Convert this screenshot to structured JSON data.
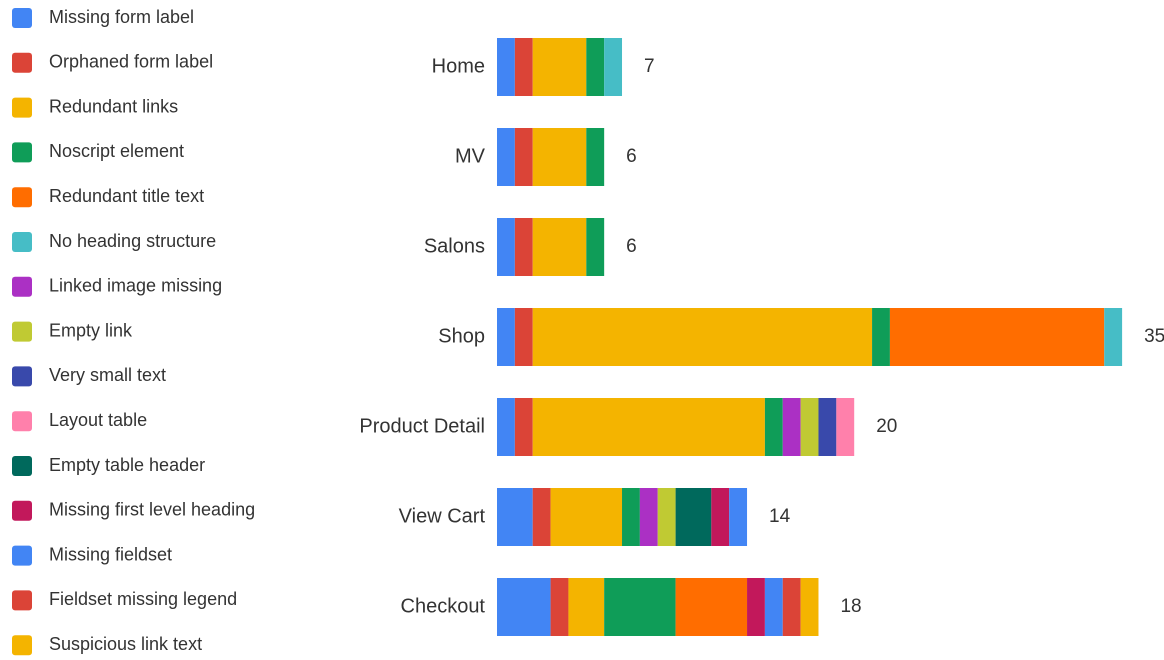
{
  "chart_data": {
    "type": "stacked_bar",
    "orientation": "horizontal",
    "categories": [
      "Home",
      "MV",
      "Salons",
      "Shop",
      "Product Detail",
      "View Cart",
      "Checkout"
    ],
    "totals": [
      7,
      6,
      6,
      35,
      20,
      14,
      18
    ],
    "series": [
      {
        "name": "Missing form label",
        "color": "#4285f4",
        "values": [
          1,
          1,
          1,
          1,
          1,
          2,
          3
        ]
      },
      {
        "name": "Orphaned form label",
        "color": "#db4437",
        "values": [
          1,
          1,
          1,
          1,
          1,
          1,
          1
        ]
      },
      {
        "name": "Redundant links",
        "color": "#f4b400",
        "values": [
          3,
          3,
          3,
          19,
          13,
          4,
          2
        ]
      },
      {
        "name": "Noscript element",
        "color": "#0f9d58",
        "values": [
          1,
          1,
          1,
          1,
          1,
          1,
          4
        ]
      },
      {
        "name": "Redundant title text",
        "color": "#ff6d00",
        "values": [
          0,
          0,
          0,
          12,
          0,
          0,
          4
        ]
      },
      {
        "name": "No heading structure",
        "color": "#46bdc6",
        "values": [
          1,
          0,
          0,
          1,
          0,
          0,
          0
        ]
      },
      {
        "name": "Linked image missing",
        "color": "#ab30c4",
        "values": [
          0,
          0,
          0,
          0,
          1,
          1,
          0
        ]
      },
      {
        "name": "Empty link",
        "color": "#c0ca33",
        "values": [
          0,
          0,
          0,
          0,
          1,
          1,
          0
        ]
      },
      {
        "name": "Very small text",
        "color": "#3949ab",
        "values": [
          0,
          0,
          0,
          0,
          1,
          0,
          0
        ]
      },
      {
        "name": "Layout table",
        "color": "#ff80ab",
        "values": [
          0,
          0,
          0,
          0,
          1,
          0,
          0
        ]
      },
      {
        "name": "Empty table header",
        "color": "#00695c",
        "values": [
          0,
          0,
          0,
          0,
          0,
          2,
          0
        ]
      },
      {
        "name": "Missing first level heading",
        "color": "#c2185b",
        "values": [
          0,
          0,
          0,
          0,
          0,
          1,
          1
        ]
      },
      {
        "name": "Missing fieldset",
        "color": "#4285f4",
        "values": [
          0,
          0,
          0,
          0,
          0,
          1,
          1
        ]
      },
      {
        "name": "Fieldset missing legend",
        "color": "#db4437",
        "values": [
          0,
          0,
          0,
          0,
          0,
          0,
          1
        ]
      },
      {
        "name": "Suspicious link text",
        "color": "#f4b400",
        "values": [
          0,
          0,
          0,
          0,
          0,
          0,
          1
        ]
      }
    ]
  }
}
